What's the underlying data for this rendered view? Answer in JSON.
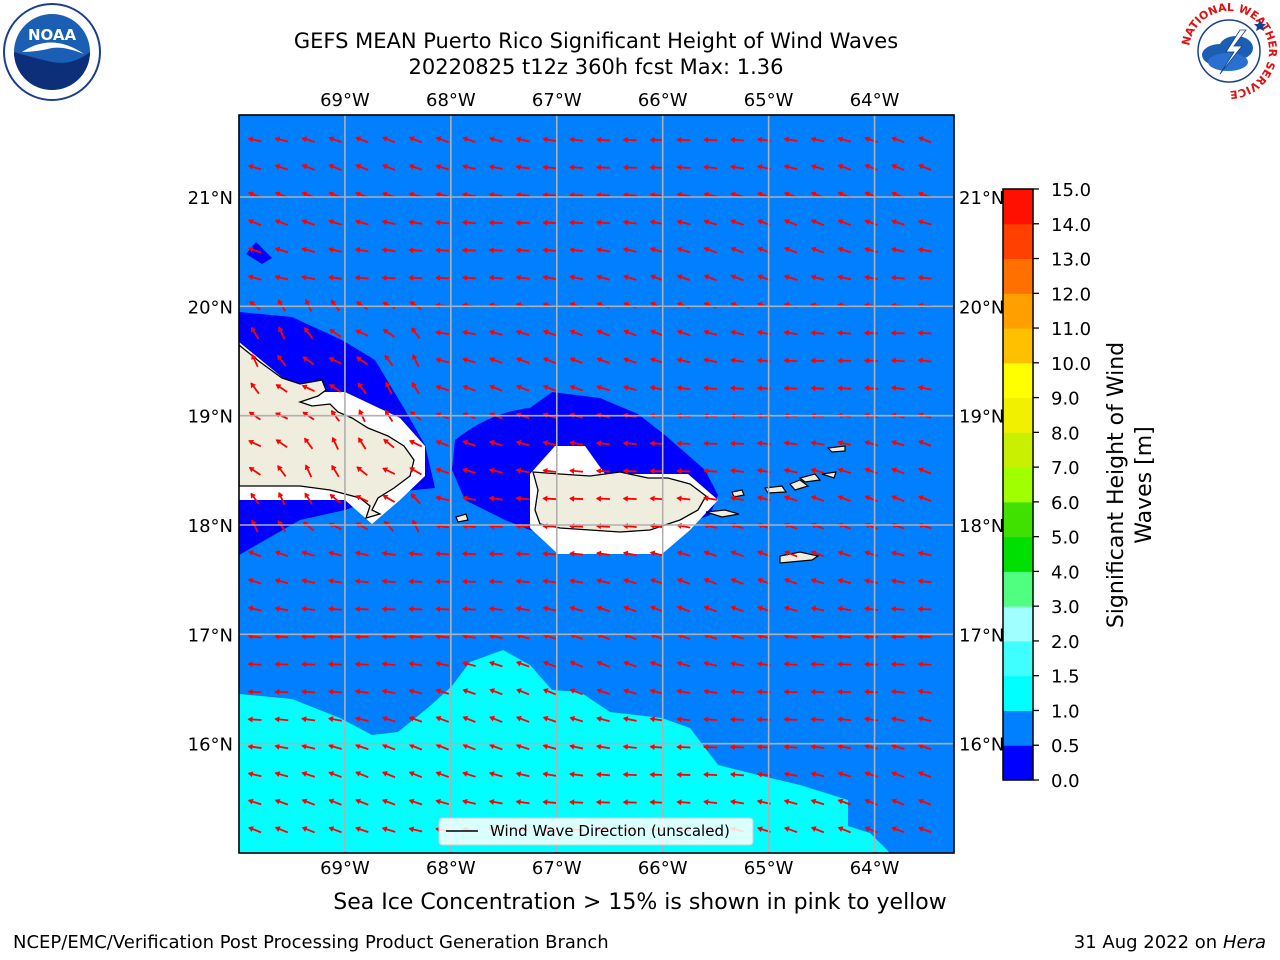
{
  "title": {
    "line1": "GEFS MEAN Puerto Rico Significant Height of Wind Waves",
    "line2": "20220825 t12z 360h fcst   Max: 1.36"
  },
  "map": {
    "lon_labels": [
      "69°W",
      "68°W",
      "67°W",
      "66°W",
      "65°W",
      "64°W"
    ],
    "lat_labels": [
      "21°N",
      "20°N",
      "19°N",
      "18°N",
      "17°N",
      "16°N"
    ],
    "lon_range": [
      -70.0,
      -63.25
    ],
    "lat_range": [
      15.0,
      21.75
    ],
    "land_color": "#efedde",
    "arrow_color": "#ff0000",
    "legend_label": "Wind Wave Direction (unscaled)"
  },
  "colorbar": {
    "label_line1": "Significant Height of Wind",
    "label_line2": "Waves [m]",
    "ticks": [
      "0.0",
      "0.5",
      "1.0",
      "1.5",
      "2.0",
      "3.0",
      "4.0",
      "5.0",
      "6.0",
      "7.0",
      "8.0",
      "9.0",
      "10.0",
      "11.0",
      "12.0",
      "13.0",
      "14.0",
      "15.0"
    ],
    "colors": [
      "#0000ff",
      "#0080ff",
      "#00ffff",
      "#40ffff",
      "#a0ffff",
      "#50ff80",
      "#00e000",
      "#40e000",
      "#a0ff00",
      "#c8f000",
      "#f0f000",
      "#ffff00",
      "#ffc000",
      "#ffa000",
      "#ff7000",
      "#ff4000",
      "#ff1000"
    ]
  },
  "ice_note": "Sea Ice Concentration > 15% is shown in pink to yellow",
  "footer": {
    "left": "NCEP/EMC/Verification Post Processing Product Generation Branch",
    "right_date": "31 Aug 2022 on",
    "right_machine": "Hera"
  },
  "logos": {
    "noaa": "NOAA",
    "nws_ring": "NATIONAL WEATHER SERVICE"
  }
}
